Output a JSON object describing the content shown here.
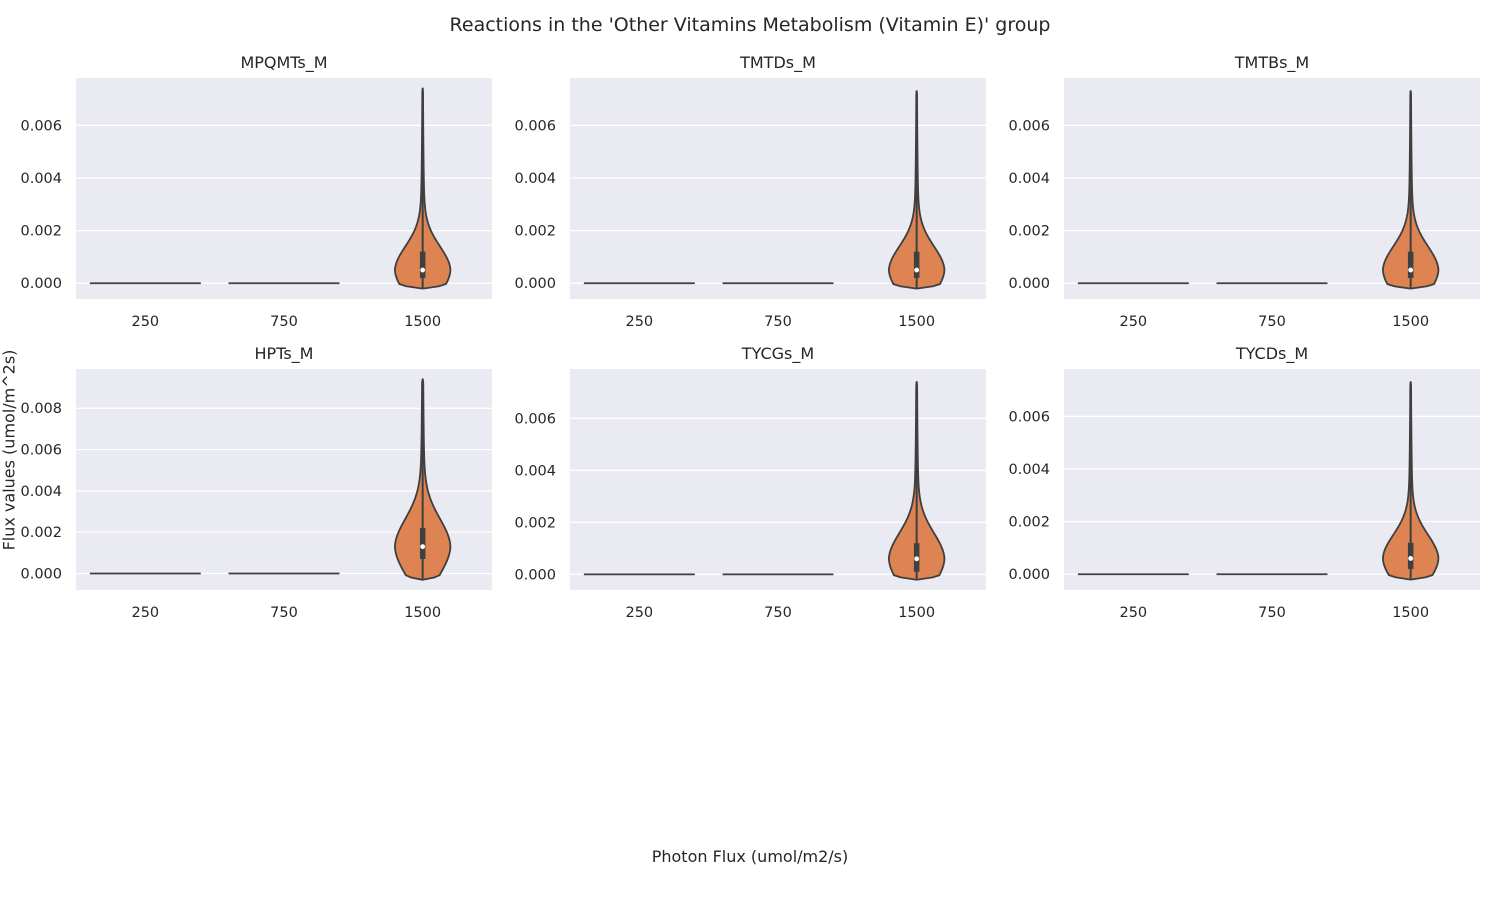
{
  "figure": {
    "title": "Reactions in the 'Other Vitamins Metabolism (Vitamin E)' group",
    "xlabel": "Photon Flux (umol/m2/s)",
    "ylabel": "Flux values (umol/m^2s)"
  },
  "colors": {
    "axes_bg": "#eaeaf2",
    "grid": "#ffffff",
    "violin_fill": "#dd8452",
    "violin_edge": "#3f3f3f",
    "text": "#262626"
  },
  "chart_data": [
    {
      "type": "violin",
      "title": "MPQMTs_M",
      "categories": [
        "250",
        "750",
        "1500"
      ],
      "ylim": [
        -0.0006,
        0.0078
      ],
      "yticks": [
        "0.000",
        "0.002",
        "0.004",
        "0.006"
      ],
      "grid": true,
      "series": [
        {
          "category": "250",
          "min": 0.0,
          "q1": 0.0,
          "median": 0.0,
          "q3": 0.0,
          "max": 0.0
        },
        {
          "category": "750",
          "min": 0.0,
          "q1": 0.0,
          "median": 0.0,
          "q3": 0.0,
          "max": 0.0
        },
        {
          "category": "1500",
          "min": -0.0002,
          "q1": 0.0002,
          "median": 0.0005,
          "q3": 0.0012,
          "max": 0.0074
        }
      ]
    },
    {
      "type": "violin",
      "title": "TMTDs_M",
      "categories": [
        "250",
        "750",
        "1500"
      ],
      "ylim": [
        -0.0006,
        0.0078
      ],
      "yticks": [
        "0.000",
        "0.002",
        "0.004",
        "0.006"
      ],
      "grid": true,
      "series": [
        {
          "category": "250",
          "min": 0.0,
          "q1": 0.0,
          "median": 0.0,
          "q3": 0.0,
          "max": 0.0
        },
        {
          "category": "750",
          "min": 0.0,
          "q1": 0.0,
          "median": 0.0,
          "q3": 0.0,
          "max": 0.0
        },
        {
          "category": "1500",
          "min": -0.0002,
          "q1": 0.0002,
          "median": 0.0005,
          "q3": 0.0012,
          "max": 0.0073
        }
      ]
    },
    {
      "type": "violin",
      "title": "TMTBs_M",
      "categories": [
        "250",
        "750",
        "1500"
      ],
      "ylim": [
        -0.0006,
        0.0078
      ],
      "yticks": [
        "0.000",
        "0.002",
        "0.004",
        "0.006"
      ],
      "grid": true,
      "series": [
        {
          "category": "250",
          "min": 0.0,
          "q1": 0.0,
          "median": 0.0,
          "q3": 0.0,
          "max": 0.0
        },
        {
          "category": "750",
          "min": 0.0,
          "q1": 0.0,
          "median": 0.0,
          "q3": 0.0,
          "max": 0.0
        },
        {
          "category": "1500",
          "min": -0.0002,
          "q1": 0.0002,
          "median": 0.0005,
          "q3": 0.0012,
          "max": 0.0073
        }
      ]
    },
    {
      "type": "violin",
      "title": "HPTs_M",
      "categories": [
        "250",
        "750",
        "1500"
      ],
      "ylim": [
        -0.0008,
        0.0099
      ],
      "yticks": [
        "0.000",
        "0.002",
        "0.004",
        "0.006",
        "0.008"
      ],
      "grid": true,
      "series": [
        {
          "category": "250",
          "min": 0.0,
          "q1": 0.0,
          "median": 0.0,
          "q3": 0.0,
          "max": 0.0
        },
        {
          "category": "750",
          "min": 0.0,
          "q1": 0.0,
          "median": 0.0,
          "q3": 0.0,
          "max": 0.0
        },
        {
          "category": "1500",
          "min": -0.0003,
          "q1": 0.0007,
          "median": 0.0013,
          "q3": 0.0022,
          "max": 0.0094
        }
      ]
    },
    {
      "type": "violin",
      "title": "TYCGs_M",
      "categories": [
        "250",
        "750",
        "1500"
      ],
      "ylim": [
        -0.0006,
        0.0079
      ],
      "yticks": [
        "0.000",
        "0.002",
        "0.004",
        "0.006"
      ],
      "grid": true,
      "series": [
        {
          "category": "250",
          "min": 0.0,
          "q1": 0.0,
          "median": 0.0,
          "q3": 0.0,
          "max": 0.0
        },
        {
          "category": "750",
          "min": 0.0,
          "q1": 0.0,
          "median": 0.0,
          "q3": 0.0,
          "max": 0.0
        },
        {
          "category": "1500",
          "min": -0.0002,
          "q1": 0.0001,
          "median": 0.0006,
          "q3": 0.0012,
          "max": 0.0074
        }
      ]
    },
    {
      "type": "violin",
      "title": "TYCDs_M",
      "categories": [
        "250",
        "750",
        "1500"
      ],
      "ylim": [
        -0.0006,
        0.0078
      ],
      "yticks": [
        "0.000",
        "0.002",
        "0.004",
        "0.006"
      ],
      "grid": true,
      "series": [
        {
          "category": "250",
          "min": 0.0,
          "q1": 0.0,
          "median": 0.0,
          "q3": 0.0,
          "max": 0.0
        },
        {
          "category": "750",
          "min": 0.0,
          "q1": 0.0,
          "median": 0.0,
          "q3": 0.0,
          "max": 0.0
        },
        {
          "category": "1500",
          "min": -0.0002,
          "q1": 0.0002,
          "median": 0.0006,
          "q3": 0.0012,
          "max": 0.0073
        }
      ]
    }
  ]
}
